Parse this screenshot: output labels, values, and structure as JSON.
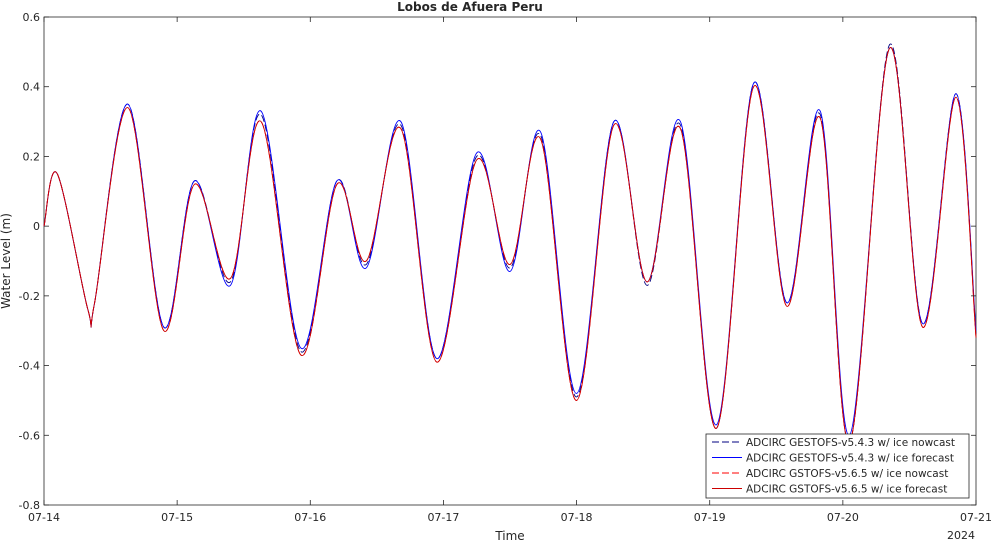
{
  "chart_data": {
    "type": "line",
    "title": "Lobos de Afuera Peru",
    "xlabel": "Time",
    "ylabel": "Water Level (m)",
    "x_ticks": [
      "07-14",
      "07-15",
      "07-16",
      "07-17",
      "07-18",
      "07-19",
      "07-20",
      "07-21"
    ],
    "x_tick_days": [
      0,
      1,
      2,
      3,
      4,
      5,
      6,
      7
    ],
    "x_year_label": "2024",
    "xlim_days": [
      0,
      7
    ],
    "ylim": [
      -0.8,
      0.6
    ],
    "y_ticks": [
      -0.8,
      -0.6,
      -0.4,
      -0.2,
      0,
      0.2,
      0.4,
      0.6
    ],
    "y_tick_labels": [
      "-0.8",
      "-0.6",
      "-0.4",
      "-0.2",
      "0",
      "0.2",
      "0.4",
      "0.6"
    ],
    "grid": false,
    "legend_position": "bottom-right",
    "x_unit": "days since 07-14",
    "series": [
      {
        "name": "ADCIRC GESTOFS-v5.4.3 w/ ice nowcast",
        "color": "#000080",
        "dash": "dashed",
        "x": [
          0,
          0.1,
          0.33,
          0.38,
          0.63,
          0.9,
          1.13,
          1.4,
          1.63,
          1.93,
          2.2,
          2.42,
          2.68,
          2.95,
          3.25,
          3.5,
          3.73,
          4.0,
          4.28,
          4.53,
          4.78,
          5.05,
          5.33,
          5.58,
          5.83,
          6.05,
          6.35,
          6.6,
          6.85,
          7.0
        ],
        "y": [
          0,
          0.15,
          -0.24,
          -0.22,
          0.35,
          -0.29,
          0.13,
          -0.16,
          0.32,
          -0.36,
          0.13,
          -0.11,
          0.29,
          -0.38,
          0.2,
          -0.12,
          0.26,
          -0.49,
          0.3,
          -0.17,
          0.29,
          -0.58,
          0.41,
          -0.22,
          0.32,
          -0.62,
          0.52,
          -0.28,
          0.38,
          -0.31
        ]
      },
      {
        "name": "ADCIRC GESTOFS-v5.4.3 w/ ice forecast",
        "color": "#0000ff",
        "dash": "solid",
        "x": [
          0,
          0.1,
          0.33,
          0.38,
          0.63,
          0.9,
          1.13,
          1.4,
          1.63,
          1.93,
          2.2,
          2.42,
          2.68,
          2.95,
          3.25,
          3.5,
          3.73,
          4.0,
          4.28,
          4.53,
          4.78,
          5.05,
          5.33,
          5.58,
          5.83,
          6.05,
          6.35,
          6.6,
          6.85,
          7.0
        ],
        "y": [
          0,
          0.15,
          -0.24,
          -0.22,
          0.35,
          -0.29,
          0.13,
          -0.17,
          0.33,
          -0.35,
          0.13,
          -0.12,
          0.3,
          -0.38,
          0.21,
          -0.13,
          0.27,
          -0.48,
          0.3,
          -0.16,
          0.3,
          -0.57,
          0.41,
          -0.22,
          0.33,
          -0.6,
          0.51,
          -0.28,
          0.38,
          -0.3
        ]
      },
      {
        "name": "ADCIRC GSTOFS-v5.6.5 w/ ice nowcast",
        "color": "#ff0000",
        "dash": "dashed",
        "x": [
          0,
          0.1,
          0.33,
          0.38,
          0.63,
          0.9,
          1.13,
          1.4,
          1.63,
          1.93,
          2.2,
          2.42,
          2.68,
          2.95,
          3.25,
          3.5,
          3.73,
          4.0,
          4.28,
          4.53,
          4.78,
          5.05,
          5.33,
          5.58,
          5.83,
          6.05,
          6.35,
          6.6,
          6.85,
          7.0
        ],
        "y": [
          0,
          0.15,
          -0.24,
          -0.22,
          0.34,
          -0.3,
          0.12,
          -0.15,
          0.3,
          -0.37,
          0.12,
          -0.1,
          0.28,
          -0.39,
          0.19,
          -0.11,
          0.25,
          -0.5,
          0.29,
          -0.16,
          0.28,
          -0.58,
          0.4,
          -0.23,
          0.31,
          -0.62,
          0.51,
          -0.29,
          0.37,
          -0.32
        ]
      },
      {
        "name": "ADCIRC GSTOFS-v5.6.5 w/ ice forecast",
        "color": "#cc0000",
        "dash": "solid",
        "x": [
          0,
          0.1,
          0.33,
          0.38,
          0.63,
          0.9,
          1.13,
          1.4,
          1.63,
          1.93,
          2.2,
          2.42,
          2.68,
          2.95,
          3.25,
          3.5,
          3.73,
          4.0,
          4.28,
          4.53,
          4.78,
          5.05,
          5.33,
          5.58,
          5.83,
          6.05,
          6.35,
          6.6,
          6.85,
          7.0
        ],
        "y": [
          0,
          0.15,
          -0.24,
          -0.22,
          0.34,
          -0.3,
          0.12,
          -0.15,
          0.3,
          -0.37,
          0.12,
          -0.1,
          0.28,
          -0.39,
          0.19,
          -0.11,
          0.25,
          -0.5,
          0.29,
          -0.16,
          0.28,
          -0.58,
          0.4,
          -0.23,
          0.31,
          -0.62,
          0.51,
          -0.29,
          0.37,
          -0.32
        ]
      }
    ]
  }
}
